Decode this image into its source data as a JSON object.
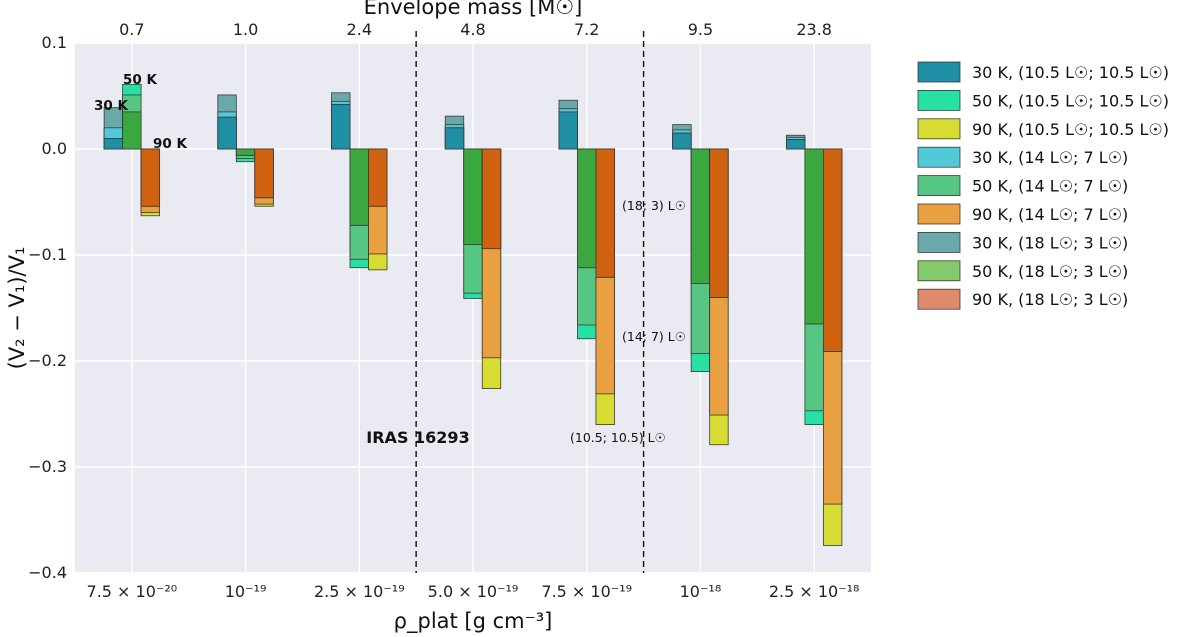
{
  "chart_data": {
    "type": "bar",
    "title": "",
    "xlabel": "ρ_plat [g cm⁻³]",
    "ylabel": "(V₂ − V₁)/V₁",
    "top_xlabel": "Envelope mass [M☉]",
    "ylim": [
      -0.4,
      0.1
    ],
    "yticks": [
      0.1,
      0.0,
      -0.1,
      -0.2,
      -0.3,
      -0.4
    ],
    "ytick_labels": [
      "0.1",
      "0.0",
      "−0.1",
      "−0.2",
      "−0.3",
      "−0.4"
    ],
    "categories": [
      "7.5 × 10⁻²⁰",
      "10⁻¹⁹",
      "2.5 × 10⁻¹⁹",
      "5.0 × 10⁻¹⁹",
      "7.5 × 10⁻¹⁹",
      "10⁻¹⁸",
      "2.5 × 10⁻¹⁸"
    ],
    "top_categories": [
      "0.7",
      "1.0",
      "2.4",
      "4.8",
      "7.2",
      "9.5",
      "23.8"
    ],
    "groups_dashed_after": [
      2,
      4
    ],
    "temperatures": [
      "30 K",
      "50 K",
      "90 K"
    ],
    "luminosity_cases": [
      "(10.5 L☉; 10.5 L☉)",
      "(14 L☉; 7 L☉)",
      "(18 L☉; 3 L☉)"
    ],
    "series": [
      {
        "name": "30 K, (10.5 L☉; 10.5 L☉)",
        "temperature": "30 K",
        "case": 0,
        "color": "#1f8fa6",
        "values": [
          0.01,
          0.03,
          0.042,
          0.02,
          0.035,
          0.015,
          0.009
        ]
      },
      {
        "name": "50 K, (10.5 L☉; 10.5 L☉)",
        "temperature": "50 K",
        "case": 0,
        "color": "#27e0a3",
        "values": [
          0.061,
          -0.012,
          -0.112,
          -0.141,
          -0.179,
          -0.21,
          -0.26
        ]
      },
      {
        "name": "90 K, (10.5 L☉; 10.5 L☉)",
        "temperature": "90 K",
        "case": 0,
        "color": "#d6dc32",
        "values": [
          -0.063,
          -0.054,
          -0.114,
          -0.226,
          -0.26,
          -0.279,
          -0.374
        ]
      },
      {
        "name": "30 K, (14 L☉; 7 L☉)",
        "temperature": "30 K",
        "case": 1,
        "color": "#52c9d6",
        "values": [
          0.02,
          0.035,
          0.045,
          0.023,
          0.038,
          0.018,
          0.011
        ]
      },
      {
        "name": "50 K, (14 L☉; 7 L☉)",
        "temperature": "50 K",
        "case": 1,
        "color": "#55c783",
        "values": [
          0.051,
          -0.009,
          -0.104,
          -0.136,
          -0.166,
          -0.193,
          -0.247
        ]
      },
      {
        "name": "90 K, (14 L☉; 7 L☉)",
        "temperature": "90 K",
        "case": 1,
        "color": "#e8a040",
        "values": [
          -0.06,
          -0.052,
          -0.099,
          -0.197,
          -0.231,
          -0.251,
          -0.335
        ]
      },
      {
        "name": "30 K, (18 L☉; 3 L☉)",
        "temperature": "30 K",
        "case": 2,
        "color": "#6aa9a9",
        "values": [
          0.039,
          0.051,
          0.053,
          0.031,
          0.046,
          0.023,
          0.013
        ]
      },
      {
        "name": "50 K, (18 L☉; 3 L☉)",
        "temperature": "50 K",
        "case": 2,
        "color": "#84c96c",
        "values": [
          0.035,
          -0.006,
          -0.072,
          -0.09,
          -0.112,
          -0.127,
          -0.165
        ]
      },
      {
        "name": "90 K, (18 L☉; 3 L☉)",
        "temperature": "90 K",
        "case": 2,
        "color": "#e08a6c",
        "values": [
          -0.054,
          -0.046,
          -0.054,
          -0.094,
          -0.121,
          -0.14,
          -0.191
        ]
      }
    ],
    "legend_position": "right",
    "grid": true
  },
  "annotations": {
    "label_30k": "30 K",
    "label_50k": "50 K",
    "label_90k": "90 K",
    "source": "IRAS 16293",
    "lum_18_3": "(18; 3) L☉",
    "lum_14_7": "(14; 7) L☉",
    "lum_10_10": "(10.5; 10.5) L☉"
  },
  "colors": {
    "plot_bg": "#eaeaf2",
    "grid": "#ffffff",
    "t30_base": "#1f8fa6",
    "t50_base": "#3aa83e",
    "t90_base": "#d0620f"
  }
}
